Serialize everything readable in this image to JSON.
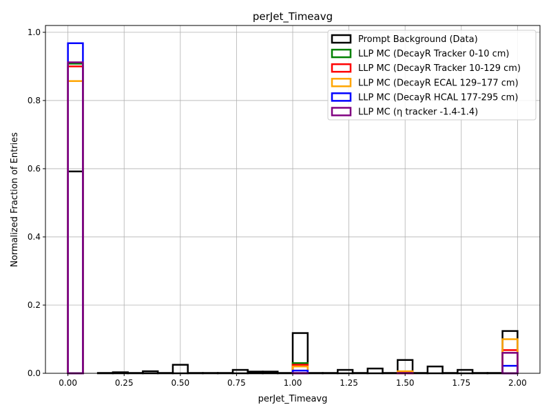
{
  "chart_data": {
    "type": "bar",
    "title": "perJet_Timeavg",
    "xlabel": "perJet_Timeavg",
    "ylabel": "Normalized Fraction of Entries",
    "xlim": [
      -0.1,
      2.1
    ],
    "ylim": [
      0,
      1.02
    ],
    "xticks": [
      0.0,
      0.25,
      0.5,
      0.75,
      1.0,
      1.25,
      1.5,
      1.75,
      2.0
    ],
    "xtick_labels": [
      "0.00",
      "0.25",
      "0.50",
      "0.75",
      "1.00",
      "1.25",
      "1.50",
      "1.75",
      "2.00"
    ],
    "yticks": [
      0.0,
      0.2,
      0.4,
      0.6,
      0.8,
      1.0
    ],
    "ytick_labels": [
      "0.0",
      "0.2",
      "0.4",
      "0.6",
      "0.8",
      "1.0"
    ],
    "grid": true,
    "legend_position": "top-right",
    "histtype": "step",
    "bin_edges": [
      0.0,
      0.0667,
      0.1333,
      0.2,
      0.2667,
      0.3333,
      0.4,
      0.4667,
      0.5333,
      0.6,
      0.6667,
      0.7333,
      0.8,
      0.8667,
      0.9333,
      1.0,
      1.0667,
      1.1333,
      1.2,
      1.2667,
      1.3333,
      1.4,
      1.4667,
      1.5333,
      1.6,
      1.6667,
      1.7333,
      1.8,
      1.8667,
      1.9333,
      2.0
    ],
    "series": [
      {
        "name": "Prompt Background (Data)",
        "color": "#000000",
        "values": [
          0.592,
          0,
          0.001,
          0.003,
          0.001,
          0.006,
          0.001,
          0.025,
          0.001,
          0.001,
          0.001,
          0.01,
          0.005,
          0.005,
          0.001,
          0.118,
          0.001,
          0.001,
          0.01,
          0.001,
          0.014,
          0.001,
          0.039,
          0.001,
          0.02,
          0.001,
          0.01,
          0.001,
          0.001,
          0.124
        ]
      },
      {
        "name": "LLP MC (DecayR Tracker 0-10 cm)",
        "color": "#008000",
        "values": [
          0.908,
          0,
          0,
          0,
          0,
          0,
          0,
          0,
          0,
          0,
          0,
          0,
          0,
          0,
          0,
          0.03,
          0,
          0,
          0,
          0,
          0,
          0,
          0,
          0,
          0,
          0,
          0,
          0,
          0,
          0.06
        ]
      },
      {
        "name": "LLP MC (DecayR Tracker 10-129 cm)",
        "color": "#ff0000",
        "values": [
          0.9,
          0,
          0,
          0,
          0,
          0,
          0,
          0,
          0,
          0,
          0,
          0,
          0,
          0,
          0,
          0.025,
          0,
          0,
          0,
          0,
          0,
          0,
          0.004,
          0,
          0,
          0,
          0,
          0,
          0,
          0.068
        ]
      },
      {
        "name": "LLP MC (DecayR ECAL 129–177 cm)",
        "color": "#ffa500",
        "values": [
          0.857,
          0,
          0,
          0,
          0,
          0,
          0,
          0,
          0,
          0,
          0,
          0,
          0,
          0,
          0,
          0.02,
          0,
          0,
          0,
          0,
          0,
          0,
          0.006,
          0,
          0,
          0,
          0,
          0,
          0,
          0.1
        ]
      },
      {
        "name": "LLP MC (DecayR HCAL 177-295 cm)",
        "color": "#0000ff",
        "values": [
          0.968,
          0,
          0,
          0,
          0,
          0,
          0,
          0,
          0,
          0,
          0,
          0,
          0,
          0,
          0,
          0.008,
          0,
          0,
          0,
          0,
          0,
          0,
          0,
          0,
          0,
          0,
          0,
          0,
          0,
          0.022
        ]
      },
      {
        "name": "LLP MC (η tracker -1.4-1.4)",
        "color": "#800080",
        "values": [
          0.912,
          0,
          0,
          0,
          0,
          0,
          0,
          0,
          0,
          0,
          0,
          0,
          0,
          0,
          0,
          0.001,
          0,
          0,
          0,
          0,
          0,
          0,
          0.001,
          0,
          0,
          0,
          0,
          0,
          0,
          0.06
        ]
      }
    ]
  }
}
